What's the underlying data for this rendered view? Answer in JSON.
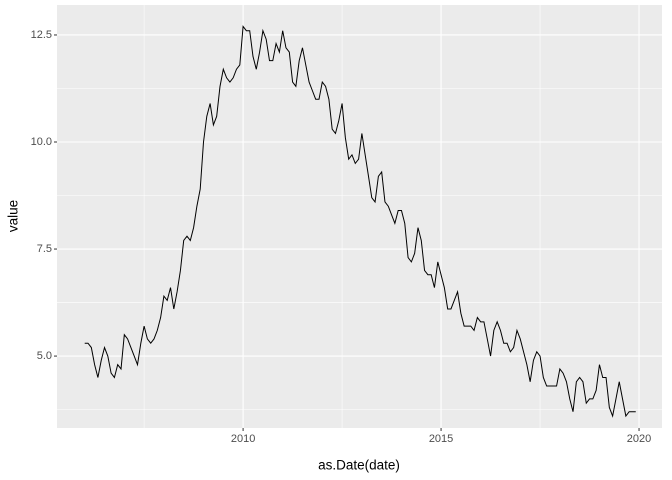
{
  "chart_data": {
    "type": "line",
    "x_label": "as.Date(date)",
    "y_label": "value",
    "xlim": [
      2005.3,
      2020.58
    ],
    "ylim": [
      3.32,
      13.2
    ],
    "xticks": [
      2010,
      2015,
      2020
    ],
    "yticks": [
      {
        "value": 5,
        "label": "5.0"
      },
      7.5,
      {
        "value": 10,
        "label": "10.0"
      },
      12.5
    ],
    "grid": true,
    "color": "#000000",
    "x": [
      2006,
      2006.083,
      2006.167,
      2006.25,
      2006.333,
      2006.417,
      2006.5,
      2006.583,
      2006.667,
      2006.75,
      2006.833,
      2006.917,
      2007,
      2007.083,
      2007.167,
      2007.25,
      2007.333,
      2007.417,
      2007.5,
      2007.583,
      2007.667,
      2007.75,
      2007.833,
      2007.917,
      2008,
      2008.083,
      2008.167,
      2008.25,
      2008.333,
      2008.417,
      2008.5,
      2008.583,
      2008.667,
      2008.75,
      2008.833,
      2008.917,
      2009,
      2009.083,
      2009.167,
      2009.25,
      2009.333,
      2009.417,
      2009.5,
      2009.583,
      2009.667,
      2009.75,
      2009.833,
      2009.917,
      2010,
      2010.083,
      2010.167,
      2010.25,
      2010.333,
      2010.417,
      2010.5,
      2010.583,
      2010.667,
      2010.75,
      2010.833,
      2010.917,
      2011,
      2011.083,
      2011.167,
      2011.25,
      2011.333,
      2011.417,
      2011.5,
      2011.583,
      2011.667,
      2011.75,
      2011.833,
      2011.917,
      2012,
      2012.083,
      2012.167,
      2012.25,
      2012.333,
      2012.417,
      2012.5,
      2012.583,
      2012.667,
      2012.75,
      2012.833,
      2012.917,
      2013,
      2013.083,
      2013.167,
      2013.25,
      2013.333,
      2013.417,
      2013.5,
      2013.583,
      2013.667,
      2013.75,
      2013.833,
      2013.917,
      2014,
      2014.083,
      2014.167,
      2014.25,
      2014.333,
      2014.417,
      2014.5,
      2014.583,
      2014.667,
      2014.75,
      2014.833,
      2014.917,
      2015,
      2015.083,
      2015.167,
      2015.25,
      2015.333,
      2015.417,
      2015.5,
      2015.583,
      2015.667,
      2015.75,
      2015.833,
      2015.917,
      2016,
      2016.083,
      2016.167,
      2016.25,
      2016.333,
      2016.417,
      2016.5,
      2016.583,
      2016.667,
      2016.75,
      2016.833,
      2016.917,
      2017,
      2017.083,
      2017.167,
      2017.25,
      2017.333,
      2017.417,
      2017.5,
      2017.583,
      2017.667,
      2017.75,
      2017.833,
      2017.917,
      2018,
      2018.083,
      2018.167,
      2018.25,
      2018.333,
      2018.417,
      2018.5,
      2018.583,
      2018.667,
      2018.75,
      2018.833,
      2018.917,
      2019,
      2019.083,
      2019.167,
      2019.25,
      2019.333,
      2019.417,
      2019.5,
      2019.583,
      2019.667,
      2019.75,
      2019.833,
      2019.917
    ],
    "values": [
      5.3,
      5.3,
      5.2,
      4.8,
      4.5,
      4.9,
      5.2,
      5.0,
      4.6,
      4.5,
      4.8,
      4.7,
      5.5,
      5.4,
      5.2,
      5.0,
      4.8,
      5.3,
      5.7,
      5.4,
      5.3,
      5.4,
      5.6,
      5.9,
      6.4,
      6.3,
      6.6,
      6.1,
      6.5,
      7.0,
      7.7,
      7.8,
      7.7,
      8.0,
      8.5,
      8.9,
      10.0,
      10.6,
      10.9,
      10.4,
      10.6,
      11.3,
      11.7,
      11.5,
      11.4,
      11.5,
      11.7,
      11.8,
      12.7,
      12.6,
      12.6,
      12.0,
      11.7,
      12.1,
      12.6,
      12.4,
      11.9,
      11.9,
      12.3,
      12.1,
      12.6,
      12.2,
      12.1,
      11.4,
      11.3,
      11.9,
      12.2,
      11.8,
      11.4,
      11.2,
      11.0,
      11.0,
      11.4,
      11.3,
      11.0,
      10.3,
      10.2,
      10.5,
      10.9,
      10.1,
      9.6,
      9.7,
      9.5,
      9.6,
      10.2,
      9.7,
      9.2,
      8.7,
      8.6,
      9.2,
      9.3,
      8.6,
      8.5,
      8.3,
      8.1,
      8.4,
      8.4,
      8.1,
      7.3,
      7.2,
      7.4,
      8.0,
      7.7,
      7.0,
      6.9,
      6.9,
      6.6,
      7.2,
      6.9,
      6.6,
      6.1,
      6.1,
      6.3,
      6.5,
      6.0,
      5.7,
      5.7,
      5.7,
      5.6,
      5.9,
      5.8,
      5.8,
      5.4,
      5.0,
      5.6,
      5.8,
      5.6,
      5.3,
      5.3,
      5.1,
      5.2,
      5.6,
      5.4,
      5.1,
      4.8,
      4.4,
      4.9,
      5.1,
      5.0,
      4.5,
      4.3,
      4.3,
      4.3,
      4.3,
      4.7,
      4.6,
      4.4,
      4.0,
      3.7,
      4.4,
      4.5,
      4.4,
      3.9,
      4.0,
      4.0,
      4.2,
      4.8,
      4.5,
      4.5,
      3.8,
      3.6,
      4.0,
      4.4,
      4.0,
      3.6,
      3.7,
      3.7,
      3.7
    ]
  }
}
